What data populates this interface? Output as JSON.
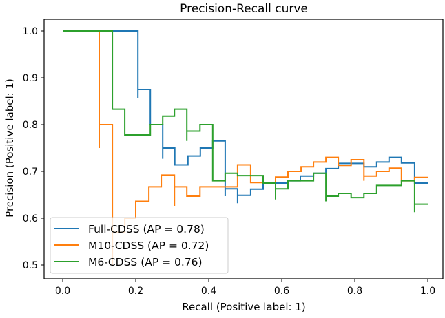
{
  "chart_data": {
    "type": "line",
    "title": "Precision-Recall curve",
    "xlabel": "Recall (Positive label: 1)",
    "ylabel": "Precision (Positive label: 1)",
    "xlim": [
      -0.05,
      1.05
    ],
    "ylim": [
      0.475,
      1.025
    ],
    "xticks": [
      "0.0",
      "0.2",
      "0.4",
      "0.6",
      "0.8",
      "1.0"
    ],
    "yticks": [
      "0.5",
      "0.6",
      "0.7",
      "0.8",
      "0.9",
      "1.0"
    ],
    "grid": false,
    "legend_position": "lower-left",
    "series": [
      {
        "name": "Full-CDSS (AP = 0.78)",
        "color": "#1f77b4",
        "points": [
          [
            0,
            1
          ],
          [
            0.206,
            1
          ],
          [
            0.206,
            0.857
          ],
          [
            0.206,
            0.875
          ],
          [
            0.24,
            0.875
          ],
          [
            0.24,
            0.8
          ],
          [
            0.274,
            0.8
          ],
          [
            0.274,
            0.727
          ],
          [
            0.274,
            0.75
          ],
          [
            0.307,
            0.75
          ],
          [
            0.307,
            0.714
          ],
          [
            0.343,
            0.714
          ],
          [
            0.343,
            0.733
          ],
          [
            0.377,
            0.733
          ],
          [
            0.377,
            0.75
          ],
          [
            0.411,
            0.75
          ],
          [
            0.411,
            0.765
          ],
          [
            0.445,
            0.765
          ],
          [
            0.445,
            0.647
          ],
          [
            0.445,
            0.663
          ],
          [
            0.479,
            0.663
          ],
          [
            0.479,
            0.632
          ],
          [
            0.479,
            0.649
          ],
          [
            0.515,
            0.649
          ],
          [
            0.515,
            0.662
          ],
          [
            0.549,
            0.662
          ],
          [
            0.549,
            0.675
          ],
          [
            0.583,
            0.675
          ],
          [
            0.617,
            0.675
          ],
          [
            0.617,
            0.68
          ],
          [
            0.651,
            0.68
          ],
          [
            0.651,
            0.69
          ],
          [
            0.687,
            0.69
          ],
          [
            0.687,
            0.696
          ],
          [
            0.721,
            0.696
          ],
          [
            0.721,
            0.706
          ],
          [
            0.755,
            0.706
          ],
          [
            0.755,
            0.717
          ],
          [
            0.825,
            0.717
          ],
          [
            0.825,
            0.71
          ],
          [
            0.86,
            0.71
          ],
          [
            0.86,
            0.72
          ],
          [
            0.894,
            0.72
          ],
          [
            0.894,
            0.73
          ],
          [
            0.928,
            0.73
          ],
          [
            0.928,
            0.718
          ],
          [
            0.964,
            0.718
          ],
          [
            0.964,
            0.675
          ],
          [
            1.0,
            0.675
          ]
        ]
      },
      {
        "name": "M10-CDSS (AP = 0.72)",
        "color": "#ff7f0e",
        "points": [
          [
            0,
            1
          ],
          [
            0.1,
            1
          ],
          [
            0.1,
            0.75
          ],
          [
            0.1,
            0.8
          ],
          [
            0.136,
            0.8
          ],
          [
            0.136,
            0.5
          ],
          [
            0.136,
            0.57
          ],
          [
            0.17,
            0.57
          ],
          [
            0.17,
            0.6
          ],
          [
            0.2,
            0.6
          ],
          [
            0.2,
            0.636
          ],
          [
            0.236,
            0.636
          ],
          [
            0.236,
            0.667
          ],
          [
            0.27,
            0.667
          ],
          [
            0.27,
            0.692
          ],
          [
            0.306,
            0.692
          ],
          [
            0.306,
            0.625
          ],
          [
            0.306,
            0.667
          ],
          [
            0.34,
            0.667
          ],
          [
            0.34,
            0.647
          ],
          [
            0.376,
            0.647
          ],
          [
            0.376,
            0.667
          ],
          [
            0.445,
            0.667
          ],
          [
            0.479,
            0.667
          ],
          [
            0.479,
            0.714
          ],
          [
            0.515,
            0.714
          ],
          [
            0.515,
            0.676
          ],
          [
            0.583,
            0.676
          ],
          [
            0.583,
            0.688
          ],
          [
            0.617,
            0.688
          ],
          [
            0.617,
            0.7
          ],
          [
            0.653,
            0.7
          ],
          [
            0.653,
            0.71
          ],
          [
            0.687,
            0.71
          ],
          [
            0.687,
            0.72
          ],
          [
            0.721,
            0.72
          ],
          [
            0.721,
            0.73
          ],
          [
            0.755,
            0.73
          ],
          [
            0.755,
            0.713
          ],
          [
            0.79,
            0.713
          ],
          [
            0.79,
            0.725
          ],
          [
            0.825,
            0.725
          ],
          [
            0.825,
            0.68
          ],
          [
            0.825,
            0.69
          ],
          [
            0.86,
            0.69
          ],
          [
            0.86,
            0.7
          ],
          [
            0.894,
            0.7
          ],
          [
            0.894,
            0.707
          ],
          [
            0.928,
            0.707
          ],
          [
            0.928,
            0.68
          ],
          [
            0.964,
            0.68
          ],
          [
            0.964,
            0.687
          ],
          [
            1.0,
            0.687
          ]
        ]
      },
      {
        "name": "M6-CDSS (AP = 0.76)",
        "color": "#2ca02c",
        "points": [
          [
            0,
            1
          ],
          [
            0.136,
            1
          ],
          [
            0.136,
            0.833
          ],
          [
            0.17,
            0.833
          ],
          [
            0.17,
            0.778
          ],
          [
            0.24,
            0.778
          ],
          [
            0.24,
            0.8
          ],
          [
            0.274,
            0.8
          ],
          [
            0.274,
            0.818
          ],
          [
            0.306,
            0.818
          ],
          [
            0.306,
            0.833
          ],
          [
            0.34,
            0.833
          ],
          [
            0.34,
            0.765
          ],
          [
            0.34,
            0.786
          ],
          [
            0.376,
            0.786
          ],
          [
            0.376,
            0.8
          ],
          [
            0.411,
            0.8
          ],
          [
            0.411,
            0.68
          ],
          [
            0.445,
            0.68
          ],
          [
            0.445,
            0.696
          ],
          [
            0.479,
            0.696
          ],
          [
            0.479,
            0.691
          ],
          [
            0.549,
            0.691
          ],
          [
            0.549,
            0.675
          ],
          [
            0.583,
            0.675
          ],
          [
            0.583,
            0.663
          ],
          [
            0.583,
            0.64
          ],
          [
            0.583,
            0.663
          ],
          [
            0.617,
            0.663
          ],
          [
            0.617,
            0.68
          ],
          [
            0.687,
            0.68
          ],
          [
            0.687,
            0.696
          ],
          [
            0.721,
            0.696
          ],
          [
            0.721,
            0.647
          ],
          [
            0.721,
            0.636
          ],
          [
            0.721,
            0.647
          ],
          [
            0.755,
            0.647
          ],
          [
            0.755,
            0.653
          ],
          [
            0.79,
            0.653
          ],
          [
            0.79,
            0.644
          ],
          [
            0.825,
            0.644
          ],
          [
            0.825,
            0.653
          ],
          [
            0.86,
            0.653
          ],
          [
            0.86,
            0.67
          ],
          [
            0.928,
            0.67
          ],
          [
            0.928,
            0.68
          ],
          [
            0.964,
            0.68
          ],
          [
            0.964,
            0.613
          ],
          [
            0.964,
            0.63
          ],
          [
            1.0,
            0.63
          ]
        ]
      }
    ]
  }
}
